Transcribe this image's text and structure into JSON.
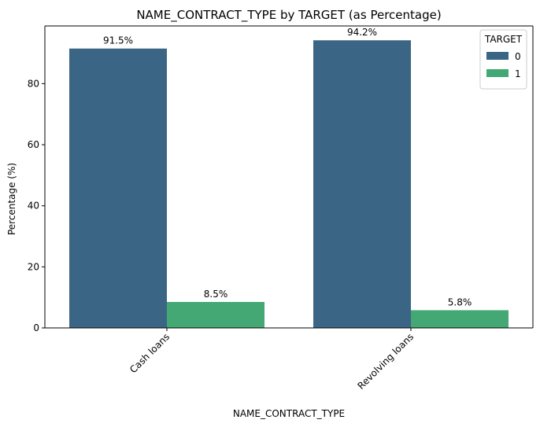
{
  "chart_data": {
    "type": "bar",
    "title": "NAME_CONTRACT_TYPE by TARGET (as Percentage)",
    "xlabel": "NAME_CONTRACT_TYPE",
    "ylabel": "Percentage (%)",
    "categories": [
      "Cash loans",
      "Revolving loans"
    ],
    "series": [
      {
        "name": "0",
        "values": [
          91.5,
          94.2
        ],
        "labels": [
          "91.5%",
          "94.2%"
        ],
        "color": "#3b6584"
      },
      {
        "name": "1",
        "values": [
          8.5,
          5.8
        ],
        "labels": [
          "8.5%",
          "5.8%"
        ],
        "color": "#43a874"
      }
    ],
    "ylim": [
      0,
      98.9
    ],
    "yticks": [
      0,
      20,
      40,
      60,
      80
    ],
    "grid": false,
    "legend": {
      "title": "TARGET",
      "position": "top-right"
    }
  }
}
